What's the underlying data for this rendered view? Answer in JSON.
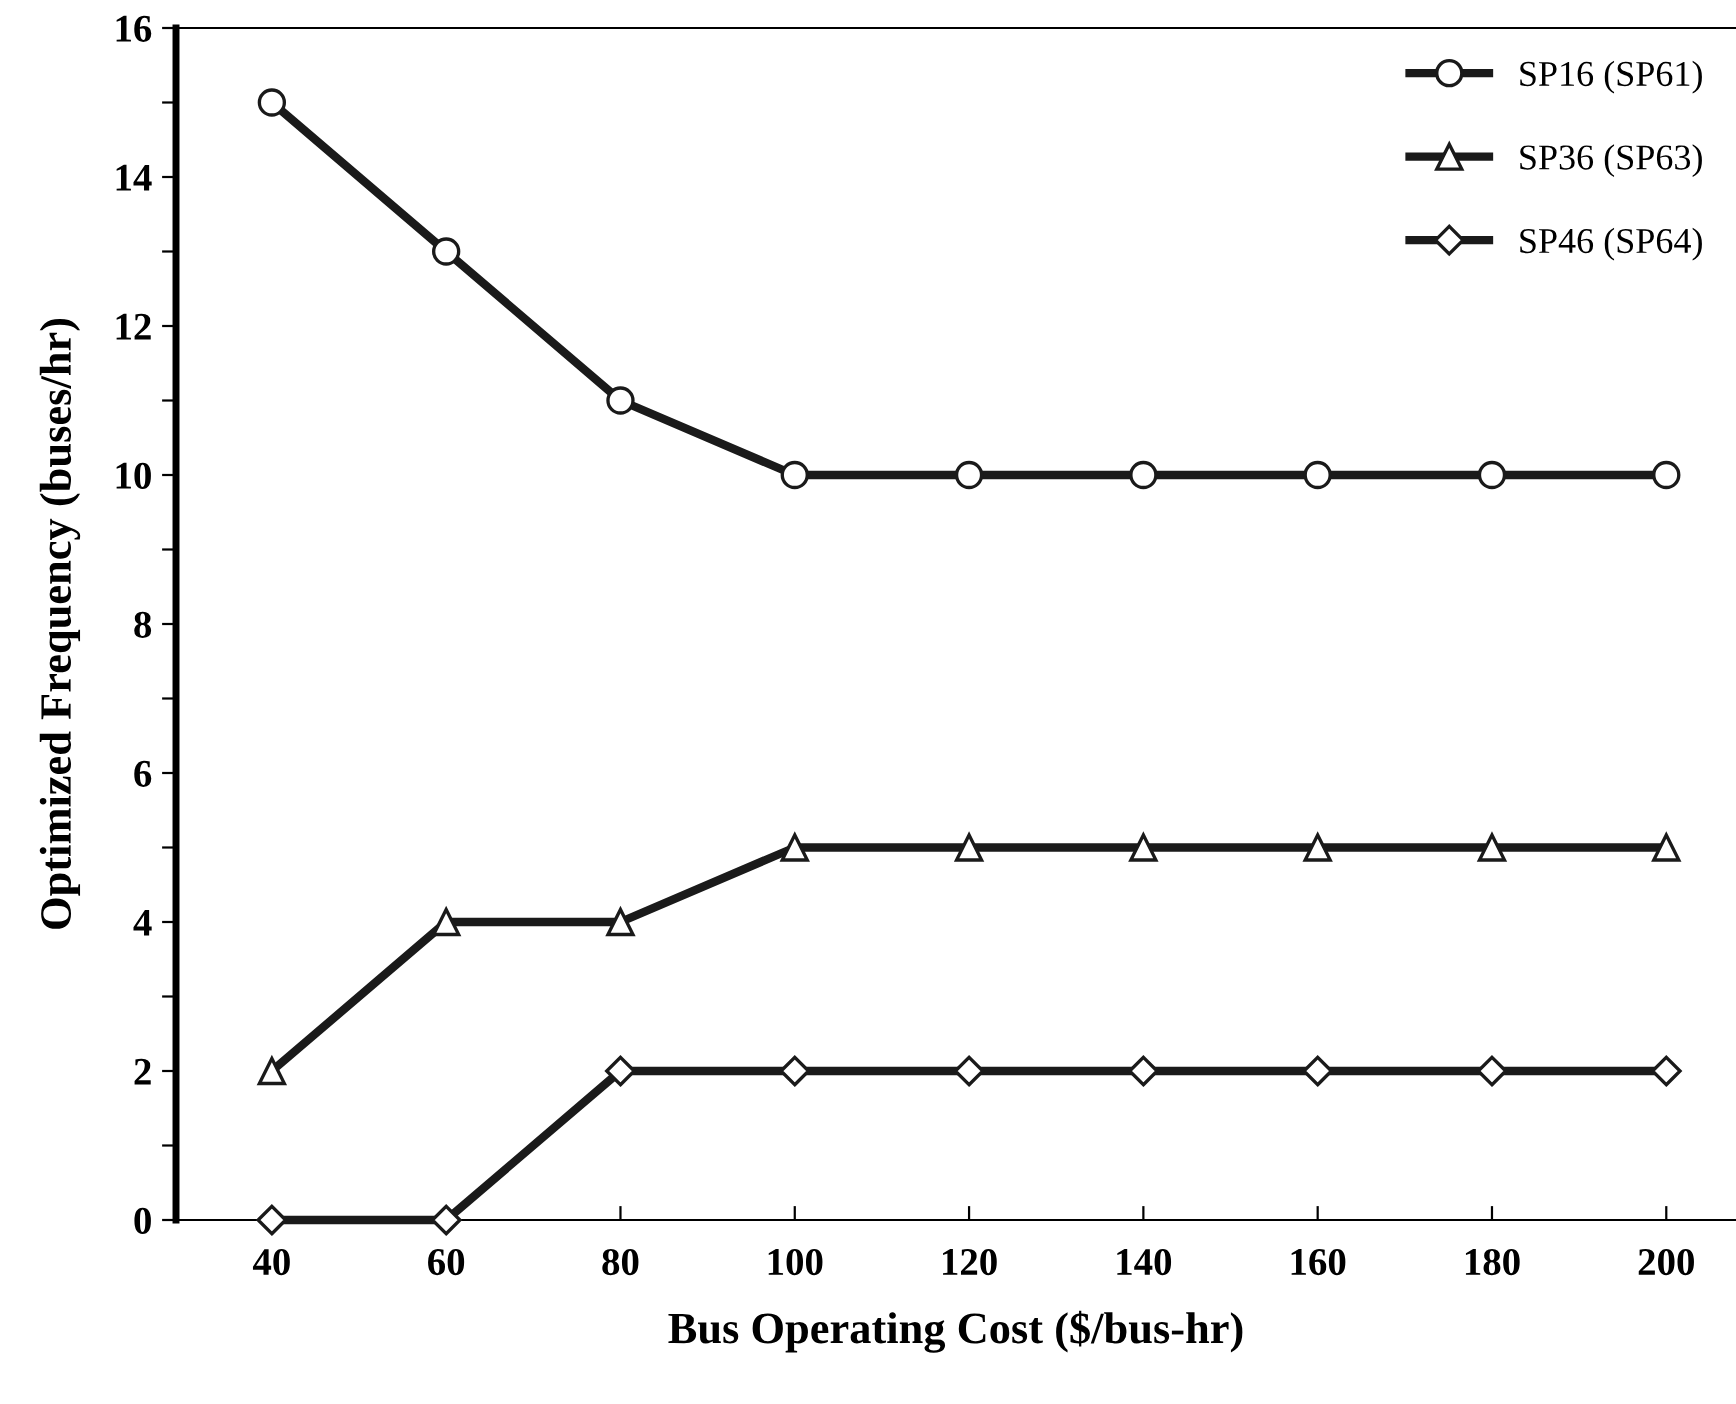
{
  "chart_data": {
    "type": "line",
    "xlabel": "Bus Operating Cost ($/bus-hr)",
    "ylabel": "Optimized Frequency (buses/hr)",
    "x": [
      40,
      60,
      80,
      100,
      120,
      140,
      160,
      180,
      200
    ],
    "series": [
      {
        "name": "SP16 (SP61)",
        "color": "#1a1a1a",
        "marker": "circle",
        "values": [
          15,
          13,
          11,
          10,
          10,
          10,
          10,
          10,
          10
        ]
      },
      {
        "name": "SP36 (SP63)",
        "color": "#1a1a1a",
        "marker": "triangle",
        "values": [
          2,
          4,
          4,
          5,
          5,
          5,
          5,
          5,
          5
        ]
      },
      {
        "name": "SP46 (SP64)",
        "color": "#1a1a1a",
        "marker": "diamond",
        "values": [
          0,
          0,
          2,
          2,
          2,
          2,
          2,
          2,
          2
        ]
      }
    ],
    "xlim": [
      29,
      208
    ],
    "ylim": [
      0,
      16
    ],
    "xticks": [
      40,
      60,
      80,
      100,
      120,
      140,
      160,
      180,
      200
    ],
    "yticks": [
      0,
      {
        "value": 1,
        "label": null
      },
      2,
      {
        "value": 3,
        "label": null
      },
      4,
      {
        "value": 5,
        "label": null
      },
      6,
      {
        "value": 7,
        "label": null
      },
      8,
      {
        "value": 9,
        "label": null
      },
      10,
      {
        "value": 11,
        "label": null
      },
      12,
      {
        "value": 13,
        "label": null
      },
      14,
      {
        "value": 15,
        "label": null
      },
      16
    ],
    "grid": false,
    "legend": "top right",
    "line_style": "solid"
  }
}
